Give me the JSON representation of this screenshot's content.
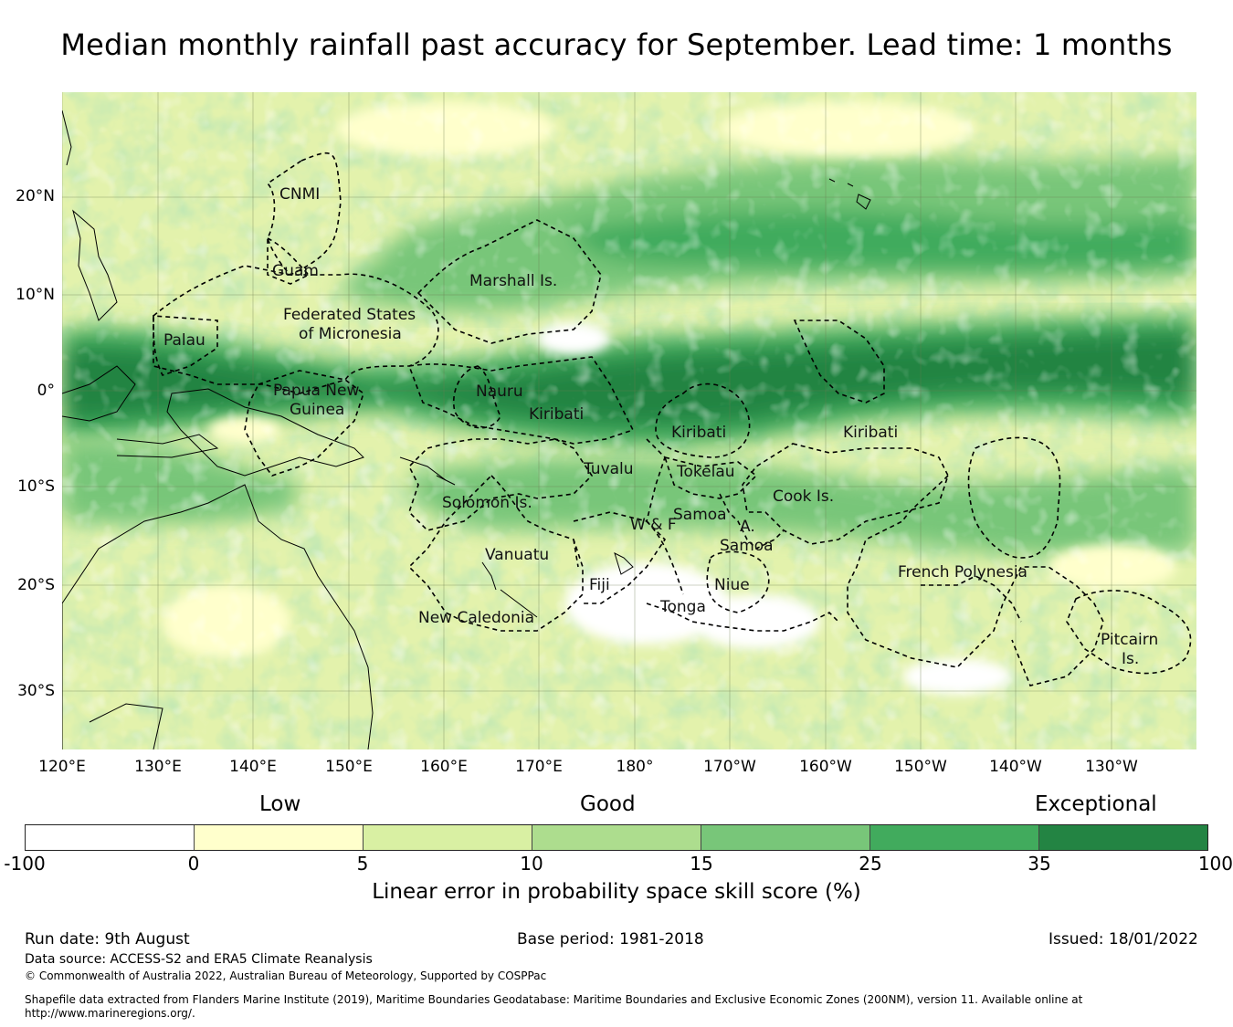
{
  "title": "Median monthly rainfall past accuracy for September. Lead time: 1 months",
  "map": {
    "lat_labels": [
      "20°N",
      "10°N",
      "0°",
      "10°S",
      "20°S",
      "30°S"
    ],
    "lon_labels": [
      "120°E",
      "130°E",
      "140°E",
      "150°E",
      "160°E",
      "170°E",
      "180°",
      "170°W",
      "160°W",
      "150°W",
      "140°W",
      "130°W"
    ],
    "regions": [
      {
        "name": "CNMI"
      },
      {
        "name": "Guam"
      },
      {
        "name": "Marshall Is."
      },
      {
        "name": "Federated States"
      },
      {
        "name": "of Micronesia"
      },
      {
        "name": "Palau"
      },
      {
        "name": "Papua New"
      },
      {
        "name": "Guinea"
      },
      {
        "name": "Nauru"
      },
      {
        "name": "Kiribati"
      },
      {
        "name": "Kiribati"
      },
      {
        "name": "Kiribati"
      },
      {
        "name": "Tuvalu"
      },
      {
        "name": "Tokelau"
      },
      {
        "name": "Cook Is."
      },
      {
        "name": "Solomon Is."
      },
      {
        "name": "Samoa"
      },
      {
        "name": "W & F"
      },
      {
        "name": "A."
      },
      {
        "name": "Samoa"
      },
      {
        "name": "Vanuatu"
      },
      {
        "name": "Fiji"
      },
      {
        "name": "Niue"
      },
      {
        "name": "Tonga"
      },
      {
        "name": "French Polynesia"
      },
      {
        "name": "New Caledonia"
      },
      {
        "name": "Pitcairn"
      },
      {
        "name": "Is."
      }
    ]
  },
  "legend": {
    "categories": [
      "Low",
      "Good",
      "Exceptional"
    ],
    "ticks": [
      "-100",
      "0",
      "5",
      "10",
      "15",
      "25",
      "35",
      "100"
    ],
    "colors": [
      "#ffffff",
      "#ffffcc",
      "#d9f0a3",
      "#addd8e",
      "#78c679",
      "#41ab5d",
      "#238443"
    ],
    "title": "Linear error in probability space skill score (%)"
  },
  "footer": {
    "run_date": "Run date: 9th August",
    "base_period": "Base period: 1981-2018",
    "issued": "Issued: 18/01/2022",
    "data_source": "Data source: ACCESS-S2 and ERA5 Climate Reanalysis",
    "copyright": "© Commonwealth of Australia 2022, Australian Bureau of Meteorology, Supported by COSPPac",
    "shapefile_line1": "Shapefile data extracted from Flanders Marine Institute (2019), Maritime Boundaries Geodatabase: Maritime Boundaries and Exclusive Economic Zones (200NM), version 11. Available online at",
    "shapefile_line2": "http://www.marineregions.org/."
  }
}
